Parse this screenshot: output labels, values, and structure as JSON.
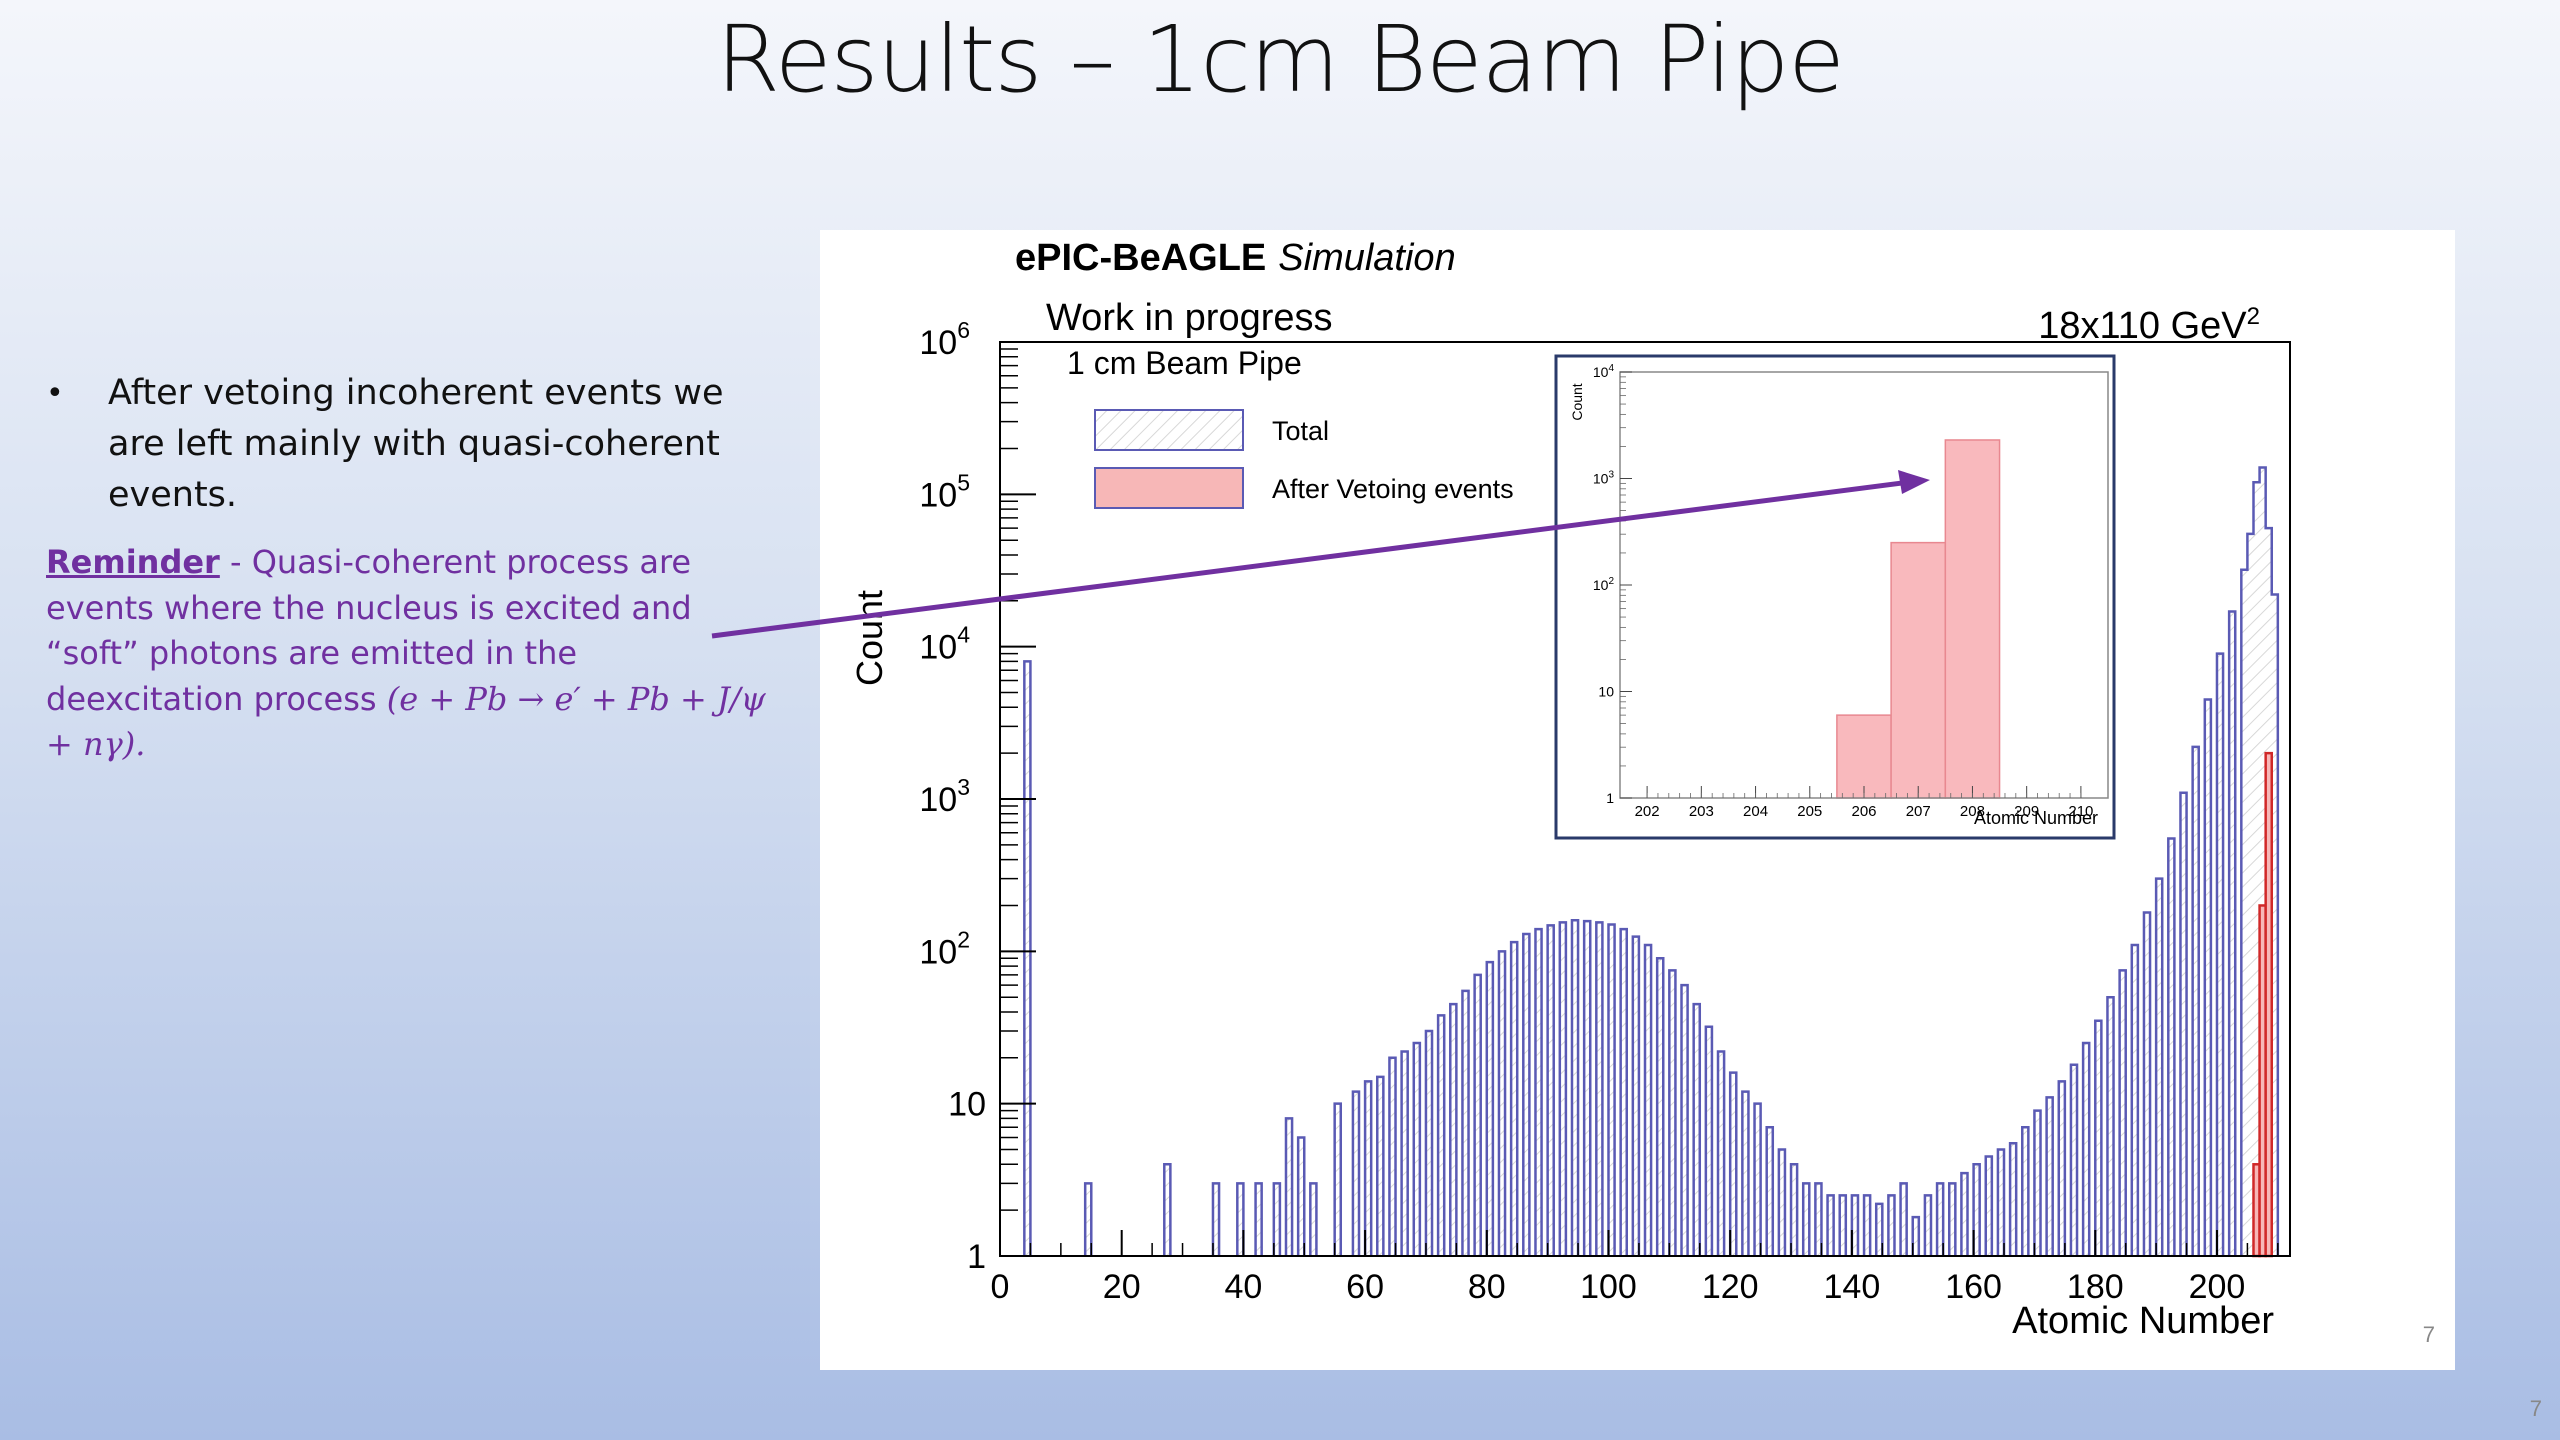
{
  "slide": {
    "title": "Results – 1cm Beam Pipe",
    "bullet_text": "After vetoing incoherent events we are left mainly with quasi-coherent events.",
    "reminder_label": "Reminder",
    "reminder_text": " - Quasi-coherent process are events where the nucleus is excited and “soft” photons are emitted in the deexcitation process  ",
    "reminder_equation": "(e + Pb  → e′ + Pb + J/ψ + nγ).",
    "page_number": "7"
  },
  "colors": {
    "total_line": "#5a5ab4",
    "total_fill": "#e6e6e6",
    "veto_line": "#d02828",
    "veto_fill": "#f7b7b7",
    "inset_fill": "#f9b9bd",
    "inset_line": "#e88890",
    "arrow": "#7030a0",
    "reminder_text": "#7030a0"
  },
  "chart_data": [
    {
      "type": "area",
      "title": "ePIC-BeAGLE Simulation",
      "title_bold": "ePIC-BeAGLE",
      "title_italic": "Simulation",
      "subtitle": "Work in progress",
      "energy_label": "18x110 GeV",
      "energy_exponent": "2",
      "legend_header": "1 cm Beam Pipe",
      "legend_placement": "top-left",
      "xlabel": "Atomic Number",
      "ylabel": "Count",
      "x_ticks": [
        "0",
        "20",
        "40",
        "60",
        "80",
        "100",
        "120",
        "140",
        "160",
        "180",
        "200"
      ],
      "y_ticks": [
        {
          "value": 1,
          "base": "1",
          "exp": ""
        },
        {
          "value": 10,
          "base": "10",
          "exp": ""
        },
        {
          "value": 100,
          "base": "10",
          "exp": "2"
        },
        {
          "value": 1000,
          "base": "10",
          "exp": "3"
        },
        {
          "value": 10000,
          "base": "10",
          "exp": "4"
        },
        {
          "value": 100000,
          "base": "10",
          "exp": "5"
        },
        {
          "value": 1000000,
          "base": "10",
          "exp": "6"
        }
      ],
      "xlim": [
        0,
        212
      ],
      "ylim": [
        1,
        1000000
      ],
      "log_y": true,
      "grid": false,
      "series": [
        {
          "name": "Total",
          "style": "hatched histogram",
          "bins": [
            [
              4,
              8000
            ],
            [
              14,
              3
            ],
            [
              27,
              4
            ],
            [
              35,
              3
            ],
            [
              39,
              3
            ],
            [
              42,
              3
            ],
            [
              45,
              3
            ],
            [
              47,
              8
            ],
            [
              49,
              6
            ],
            [
              51,
              3
            ],
            [
              55,
              10
            ],
            [
              58,
              12
            ],
            [
              60,
              14
            ],
            [
              62,
              15
            ],
            [
              64,
              20
            ],
            [
              66,
              22
            ],
            [
              68,
              25
            ],
            [
              70,
              30
            ],
            [
              72,
              38
            ],
            [
              74,
              45
            ],
            [
              76,
              55
            ],
            [
              78,
              70
            ],
            [
              80,
              85
            ],
            [
              82,
              100
            ],
            [
              84,
              115
            ],
            [
              86,
              130
            ],
            [
              88,
              140
            ],
            [
              90,
              148
            ],
            [
              92,
              155
            ],
            [
              94,
              160
            ],
            [
              96,
              158
            ],
            [
              98,
              155
            ],
            [
              100,
              150
            ],
            [
              102,
              140
            ],
            [
              104,
              125
            ],
            [
              106,
              110
            ],
            [
              108,
              90
            ],
            [
              110,
              75
            ],
            [
              112,
              60
            ],
            [
              114,
              45
            ],
            [
              116,
              32
            ],
            [
              118,
              22
            ],
            [
              120,
              16
            ],
            [
              122,
              12
            ],
            [
              124,
              10
            ],
            [
              126,
              7
            ],
            [
              128,
              5
            ],
            [
              130,
              4
            ],
            [
              132,
              3
            ],
            [
              134,
              3
            ],
            [
              136,
              2.5
            ],
            [
              138,
              2.5
            ],
            [
              140,
              2.5
            ],
            [
              142,
              2.5
            ],
            [
              144,
              2.2
            ],
            [
              146,
              2.5
            ],
            [
              148,
              3
            ],
            [
              150,
              1.8
            ],
            [
              152,
              2.5
            ],
            [
              154,
              3
            ],
            [
              156,
              3
            ],
            [
              158,
              3.5
            ],
            [
              160,
              4
            ],
            [
              162,
              4.5
            ],
            [
              164,
              5
            ],
            [
              166,
              5.5
            ],
            [
              168,
              7
            ],
            [
              170,
              9
            ],
            [
              172,
              11
            ],
            [
              174,
              14
            ],
            [
              176,
              18
            ],
            [
              178,
              25
            ],
            [
              180,
              35
            ],
            [
              182,
              50
            ],
            [
              184,
              75
            ],
            [
              186,
              110
            ],
            [
              188,
              180
            ],
            [
              190,
              300
            ],
            [
              192,
              550
            ],
            [
              194,
              1100
            ],
            [
              196,
              2200
            ],
            [
              198,
              4500
            ],
            [
              200,
              9000
            ],
            [
              202,
              17000
            ],
            [
              204,
              32000
            ],
            [
              205,
              55000
            ],
            [
              206,
              120000
            ],
            [
              207,
              150000
            ],
            [
              208,
              60000
            ],
            [
              209,
              22000
            ]
          ]
        },
        {
          "name": "After Vetoing events",
          "style": "solid histogram",
          "bins": [
            [
              206,
              4
            ],
            [
              207,
              200
            ],
            [
              208,
              2000
            ]
          ]
        }
      ]
    },
    {
      "type": "bar",
      "role": "inset",
      "xlabel": "Atomic Number",
      "ylabel": "Count",
      "x_ticks": [
        "202",
        "203",
        "204",
        "205",
        "206",
        "207",
        "208",
        "209",
        "210"
      ],
      "y_ticks": [
        {
          "value": 1,
          "base": "1",
          "exp": ""
        },
        {
          "value": 10,
          "base": "10",
          "exp": ""
        },
        {
          "value": 100,
          "base": "10",
          "exp": "2"
        },
        {
          "value": 1000,
          "base": "10",
          "exp": "3"
        },
        {
          "value": 10000,
          "base": "10",
          "exp": "4"
        }
      ],
      "xlim": [
        201.5,
        210.5
      ],
      "ylim": [
        1,
        10000
      ],
      "log_y": true,
      "bins": [
        [
          205.5,
          206.5,
          6
        ],
        [
          206.5,
          207.5,
          250
        ],
        [
          207.5,
          208.5,
          2300
        ]
      ]
    }
  ]
}
